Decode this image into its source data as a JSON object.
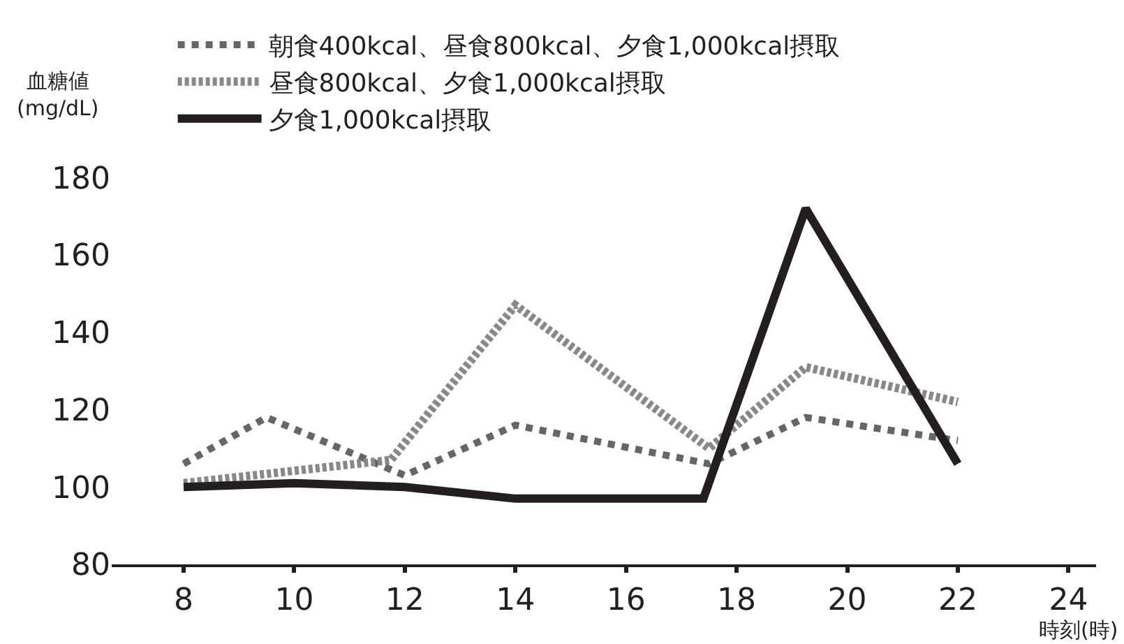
{
  "chart_data": {
    "type": "line",
    "ylabel": "血糖値\n(mg/dL)",
    "xlabel": "時刻(時)",
    "xlim": [
      6.7,
      24.5
    ],
    "ylim": [
      80,
      180
    ],
    "xticks": [
      8,
      10,
      12,
      14,
      16,
      18,
      20,
      22,
      24
    ],
    "yticks": [
      80,
      100,
      120,
      140,
      160,
      180
    ],
    "legend": "top left",
    "marker": "none",
    "series": [
      {
        "name": "朝食400kcal、昼食800kcal、夕食1,000kcal摂取",
        "color": "#666666",
        "line_style": "dotted",
        "x": [
          8,
          9.5,
          12,
          14,
          17.5,
          19.25,
          22
        ],
        "values": [
          106,
          118,
          103,
          116,
          106,
          118,
          112
        ]
      },
      {
        "name": "昼食800kcal、夕食1,000kcal摂取",
        "color": "#888888",
        "line_style": "dashed",
        "x": [
          8,
          11.75,
          14,
          17.5,
          19.25,
          22
        ],
        "values": [
          101,
          107,
          147,
          110,
          131,
          122
        ]
      },
      {
        "name": "夕食1,000kcal摂取",
        "color": "#231f20",
        "line_style": "solid",
        "x": [
          8,
          10,
          12,
          14,
          17.4,
          19.25,
          22
        ],
        "values": [
          100,
          101,
          100,
          97,
          97,
          172,
          106
        ]
      }
    ]
  }
}
